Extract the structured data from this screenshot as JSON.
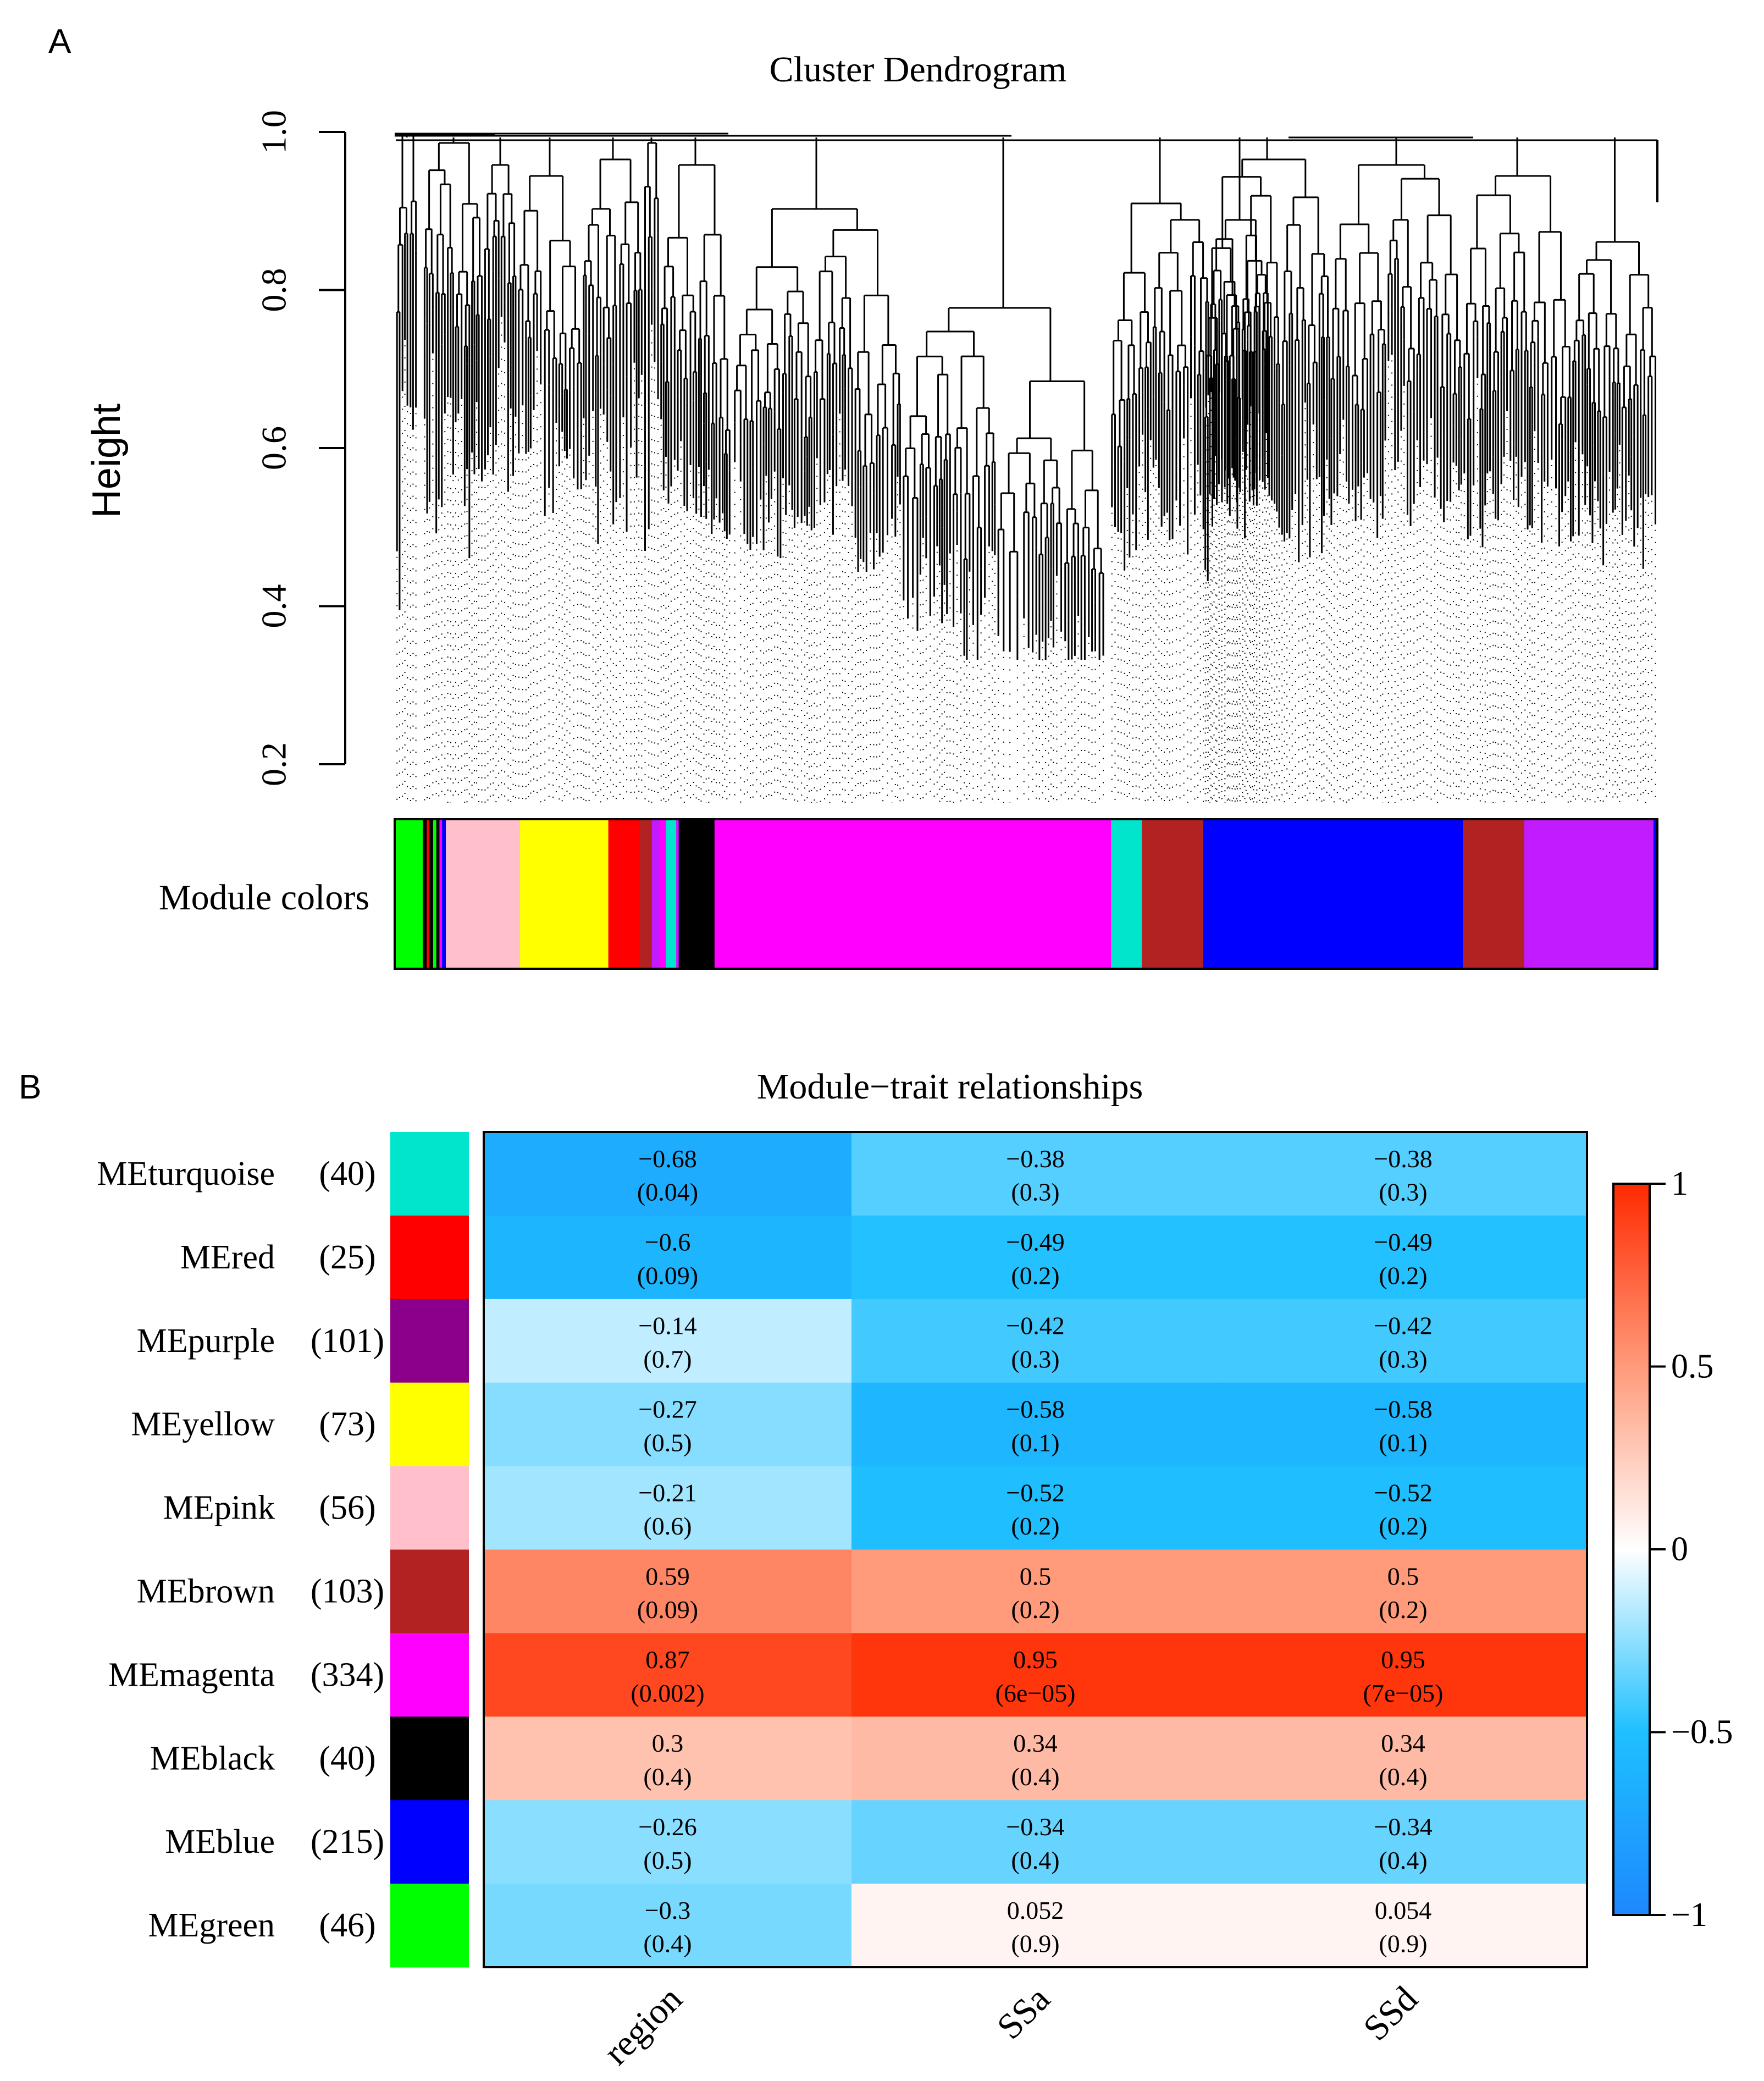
{
  "panel_labels": {
    "a": "A",
    "b": "B"
  },
  "chart_data": [
    {
      "type": "dendrogram",
      "title": "Cluster Dendrogram",
      "ylabel": "Height",
      "ylim": [
        0.2,
        1.0
      ],
      "yticks": [
        "0.2",
        "0.4",
        "0.6",
        "0.8",
        "1.0"
      ],
      "color_bar_label": "Module colors",
      "module_color_segments": [
        {
          "color": "#00ff00",
          "weight": 2.2
        },
        {
          "color": "#000000",
          "weight": 0.3
        },
        {
          "color": "#ff0000",
          "weight": 0.2
        },
        {
          "color": "#000000",
          "weight": 0.3
        },
        {
          "color": "#00ff00",
          "weight": 0.25
        },
        {
          "color": "#000000",
          "weight": 0.25
        },
        {
          "color": "#ff00ff",
          "weight": 0.2
        },
        {
          "color": "#0000ff",
          "weight": 0.3
        },
        {
          "color": "#ffc0cb",
          "weight": 5.8
        },
        {
          "color": "#ffff00",
          "weight": 6.9
        },
        {
          "color": "#ff0000",
          "weight": 2.4
        },
        {
          "color": "#b22222",
          "weight": 0.5
        },
        {
          "color": "#b22222",
          "weight": 0.5
        },
        {
          "color": "#c21bff",
          "weight": 0.6
        },
        {
          "color": "#ff00ff",
          "weight": 0.5
        },
        {
          "color": "#00e5cc",
          "weight": 0.8
        },
        {
          "color": "#c21bff",
          "weight": 0.2
        },
        {
          "color": "#000000",
          "weight": 2.8
        },
        {
          "color": "#ff00ff",
          "weight": 31.0
        },
        {
          "color": "#00e5cc",
          "weight": 2.4
        },
        {
          "color": "#b22222",
          "weight": 4.8
        },
        {
          "color": "#0000ff",
          "weight": 20.3
        },
        {
          "color": "#b22222",
          "weight": 4.8
        },
        {
          "color": "#c21bff",
          "weight": 10.1
        },
        {
          "color": "#0000ff",
          "weight": 0.3
        }
      ]
    },
    {
      "type": "heatmap",
      "title": "Module−trait relationships",
      "x_categories": [
        "region",
        "SSa",
        "SSd"
      ],
      "rows": [
        {
          "name": "MEturquoise",
          "count": "(40)",
          "color": "#00e5cc",
          "values": [
            -0.68,
            -0.38,
            -0.38
          ],
          "labels": [
            "−0.68",
            "−0.38",
            "−0.38"
          ],
          "pvalues": [
            "(0.04)",
            "(0.3)",
            "(0.3)"
          ]
        },
        {
          "name": "MEred",
          "count": "(25)",
          "color": "#ff0000",
          "values": [
            -0.6,
            -0.49,
            -0.49
          ],
          "labels": [
            "−0.6",
            "−0.49",
            "−0.49"
          ],
          "pvalues": [
            "(0.09)",
            "(0.2)",
            "(0.2)"
          ]
        },
        {
          "name": "MEpurple",
          "count": "(101)",
          "color": "#8b008b",
          "values": [
            -0.14,
            -0.42,
            -0.42
          ],
          "labels": [
            "−0.14",
            "−0.42",
            "−0.42"
          ],
          "pvalues": [
            "(0.7)",
            "(0.3)",
            "(0.3)"
          ]
        },
        {
          "name": "MEyellow",
          "count": "(73)",
          "color": "#ffff00",
          "values": [
            -0.27,
            -0.58,
            -0.58
          ],
          "labels": [
            "−0.27",
            "−0.58",
            "−0.58"
          ],
          "pvalues": [
            "(0.5)",
            "(0.1)",
            "(0.1)"
          ]
        },
        {
          "name": "MEpink",
          "count": "(56)",
          "color": "#ffc0cb",
          "values": [
            -0.21,
            -0.52,
            -0.52
          ],
          "labels": [
            "−0.21",
            "−0.52",
            "−0.52"
          ],
          "pvalues": [
            "(0.6)",
            "(0.2)",
            "(0.2)"
          ]
        },
        {
          "name": "MEbrown",
          "count": "(103)",
          "color": "#b22222",
          "values": [
            0.59,
            0.5,
            0.5
          ],
          "labels": [
            "0.59",
            "0.5",
            "0.5"
          ],
          "pvalues": [
            "(0.09)",
            "(0.2)",
            "(0.2)"
          ]
        },
        {
          "name": "MEmagenta",
          "count": "(334)",
          "color": "#ff00ff",
          "values": [
            0.87,
            0.95,
            0.95
          ],
          "labels": [
            "0.87",
            "0.95",
            "0.95"
          ],
          "pvalues": [
            "(0.002)",
            "(6e−05)",
            "(7e−05)"
          ]
        },
        {
          "name": "MEblack",
          "count": "(40)",
          "color": "#000000",
          "values": [
            0.3,
            0.34,
            0.34
          ],
          "labels": [
            "0.3",
            "0.34",
            "0.34"
          ],
          "pvalues": [
            "(0.4)",
            "(0.4)",
            "(0.4)"
          ]
        },
        {
          "name": "MEblue",
          "count": "(215)",
          "color": "#0000ff",
          "values": [
            -0.26,
            -0.34,
            -0.34
          ],
          "labels": [
            "−0.26",
            "−0.34",
            "−0.34"
          ],
          "pvalues": [
            "(0.5)",
            "(0.4)",
            "(0.4)"
          ]
        },
        {
          "name": "MEgreen",
          "count": "(46)",
          "color": "#00ff00",
          "values": [
            -0.3,
            0.052,
            0.054
          ],
          "labels": [
            "−0.3",
            "0.052",
            "0.054"
          ],
          "pvalues": [
            "(0.4)",
            "(0.9)",
            "(0.9)"
          ]
        }
      ],
      "colorbar": {
        "range": [
          -1,
          1
        ],
        "ticks": [
          {
            "value": 1,
            "label": "1"
          },
          {
            "value": 0.5,
            "label": "0.5"
          },
          {
            "value": 0,
            "label": "0"
          },
          {
            "value": -0.5,
            "label": "−0.5"
          },
          {
            "value": -1,
            "label": "−1"
          }
        ]
      }
    }
  ]
}
